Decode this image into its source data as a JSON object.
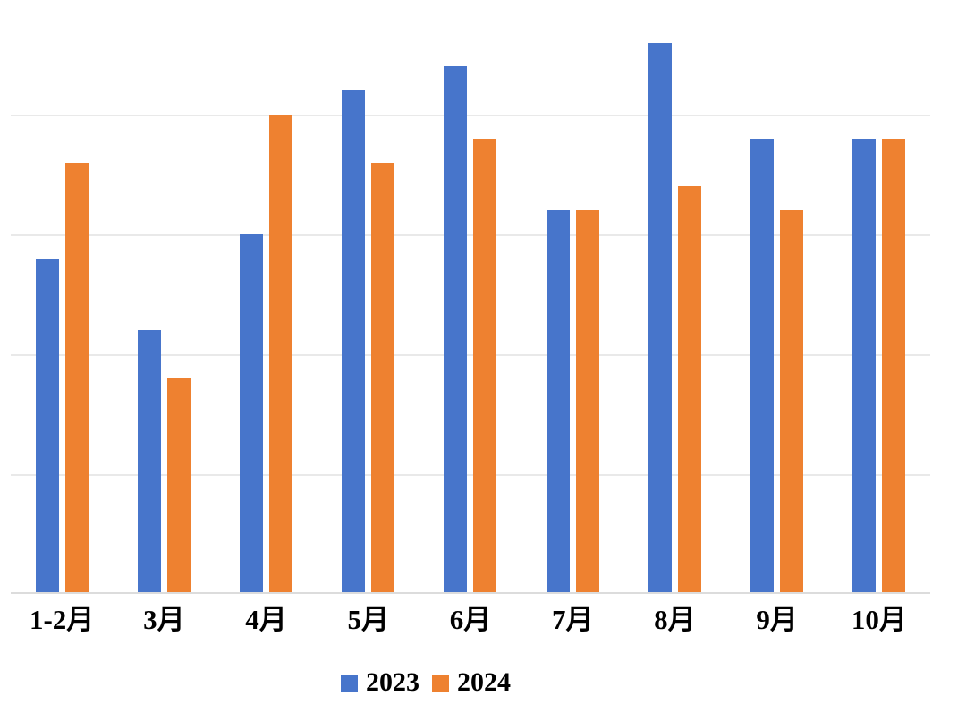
{
  "chart_data": {
    "type": "bar",
    "title": "",
    "xlabel": "",
    "ylabel": "",
    "categories": [
      "1-2月",
      "3月",
      "4月",
      "5月",
      "6月",
      "7月",
      "8月",
      "9月",
      "10月"
    ],
    "series": [
      {
        "name": "2023",
        "color": "#4775CB",
        "values": [
          14,
          11,
          15,
          21,
          22,
          16,
          23,
          19,
          19
        ]
      },
      {
        "name": "2024",
        "color": "#EE8130",
        "values": [
          18,
          9,
          20,
          18,
          19,
          16,
          17,
          16,
          19
        ]
      }
    ],
    "ylim": [
      0,
      25
    ],
    "gridline_interval": 5,
    "grid": "horizontal",
    "y_axis_labels_visible": false,
    "legend_position": "bottom"
  },
  "colors": {
    "background": "#FFFFFF",
    "gridline": "#E9E9E9",
    "axis_line": "#DCDCDC",
    "label_text": "#000000"
  }
}
